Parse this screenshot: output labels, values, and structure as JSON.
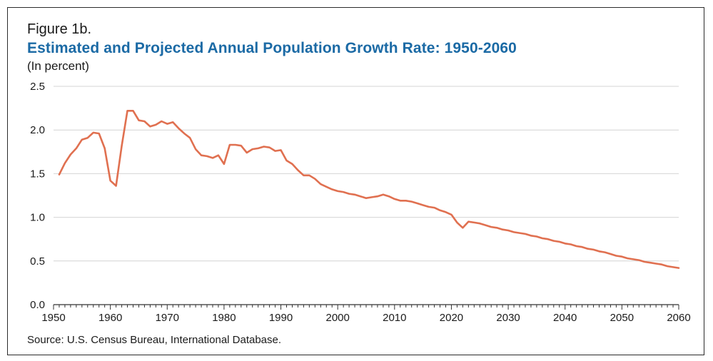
{
  "figure_label": "Figure 1b.",
  "title": "Estimated and Projected Annual Population Growth Rate: 1950-2060",
  "subtitle": "(In percent)",
  "source": "Source: U.S. Census Bureau, International Database.",
  "colors": {
    "title": "#1b6aa5",
    "line": "#e07050",
    "grid": "#d4d4d4",
    "axis": "#333333"
  },
  "chart_data": {
    "type": "line",
    "xlim": [
      1950,
      2060
    ],
    "ylim": [
      0,
      2.5
    ],
    "x_ticks": [
      1950,
      1960,
      1970,
      1980,
      1990,
      2000,
      2010,
      2020,
      2030,
      2040,
      2050,
      2060
    ],
    "y_ticks": [
      0.0,
      0.5,
      1.0,
      1.5,
      2.0,
      2.5
    ],
    "x_tick_labels": [
      "1950",
      "1960",
      "1970",
      "1980",
      "1990",
      "2000",
      "2010",
      "2020",
      "2030",
      "2040",
      "2050",
      "2060"
    ],
    "y_tick_labels": [
      "0.0",
      "0.5",
      "1.0",
      "1.5",
      "2.0",
      "2.5"
    ],
    "grid": true,
    "series": [
      {
        "x": [
          1951,
          1952,
          1953,
          1954,
          1955,
          1956,
          1957,
          1958,
          1959,
          1960,
          1961,
          1962,
          1963,
          1964,
          1965,
          1966,
          1967,
          1968,
          1969,
          1970,
          1971,
          1972,
          1973,
          1974,
          1975,
          1976,
          1977,
          1978,
          1979,
          1980,
          1981,
          1982,
          1983,
          1984,
          1985,
          1986,
          1987,
          1988,
          1989,
          1990,
          1991,
          1992,
          1993,
          1994,
          1995,
          1996,
          1997,
          1998,
          1999,
          2000,
          2001,
          2002,
          2003,
          2004,
          2005,
          2006,
          2007,
          2008,
          2009,
          2010,
          2011,
          2012,
          2013,
          2014,
          2015,
          2016,
          2017,
          2018,
          2019,
          2020,
          2021,
          2022,
          2023,
          2024,
          2025,
          2026,
          2027,
          2028,
          2029,
          2030,
          2031,
          2032,
          2033,
          2034,
          2035,
          2036,
          2037,
          2038,
          2039,
          2040,
          2041,
          2042,
          2043,
          2044,
          2045,
          2046,
          2047,
          2048,
          2049,
          2050,
          2051,
          2052,
          2053,
          2054,
          2055,
          2056,
          2057,
          2058,
          2059,
          2060
        ],
        "values": [
          1.49,
          1.62,
          1.72,
          1.79,
          1.89,
          1.91,
          1.97,
          1.96,
          1.79,
          1.42,
          1.36,
          1.82,
          2.22,
          2.22,
          2.11,
          2.1,
          2.04,
          2.06,
          2.1,
          2.07,
          2.09,
          2.02,
          1.96,
          1.91,
          1.78,
          1.71,
          1.7,
          1.68,
          1.71,
          1.61,
          1.83,
          1.83,
          1.82,
          1.74,
          1.78,
          1.79,
          1.81,
          1.8,
          1.76,
          1.77,
          1.65,
          1.61,
          1.54,
          1.48,
          1.48,
          1.44,
          1.38,
          1.35,
          1.32,
          1.3,
          1.29,
          1.27,
          1.26,
          1.24,
          1.22,
          1.23,
          1.24,
          1.26,
          1.24,
          1.21,
          1.19,
          1.19,
          1.18,
          1.16,
          1.14,
          1.12,
          1.11,
          1.08,
          1.06,
          1.03,
          0.94,
          0.88,
          0.95,
          0.94,
          0.93,
          0.91,
          0.89,
          0.88,
          0.86,
          0.85,
          0.83,
          0.82,
          0.81,
          0.79,
          0.78,
          0.76,
          0.75,
          0.73,
          0.72,
          0.7,
          0.69,
          0.67,
          0.66,
          0.64,
          0.63,
          0.61,
          0.6,
          0.58,
          0.56,
          0.55,
          0.53,
          0.52,
          0.51,
          0.49,
          0.48,
          0.47,
          0.46,
          0.44,
          0.43,
          0.42
        ]
      }
    ]
  }
}
